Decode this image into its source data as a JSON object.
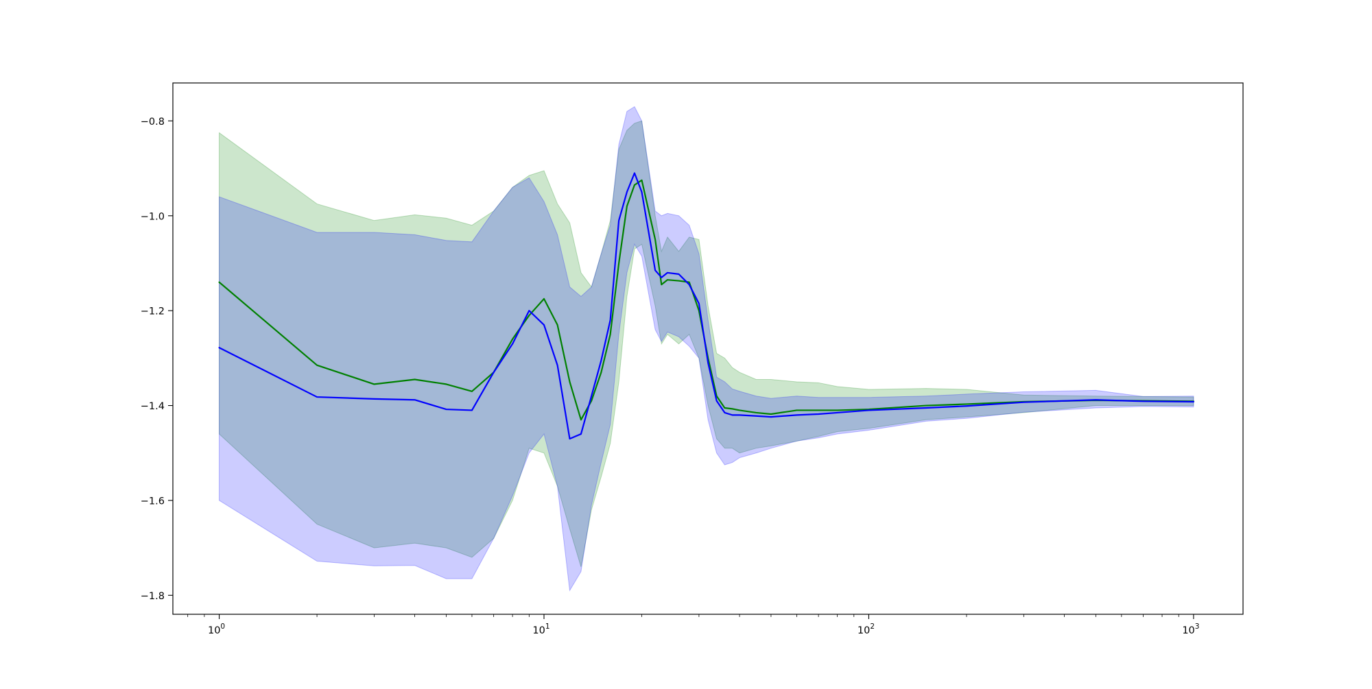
{
  "chart_data": {
    "type": "line",
    "title": "",
    "xlabel": "",
    "ylabel": "",
    "xscale": "log",
    "xlim": [
      0.72,
      1420
    ],
    "ylim": [
      -1.84,
      -0.72
    ],
    "grid": false,
    "x_major_ticks": [
      {
        "value": 1,
        "label_base": "10",
        "label_exp": "0"
      },
      {
        "value": 10,
        "label_base": "10",
        "label_exp": "1"
      },
      {
        "value": 100,
        "label_base": "10",
        "label_exp": "2"
      },
      {
        "value": 1000,
        "label_base": "10",
        "label_exp": "3"
      }
    ],
    "y_ticks": [
      {
        "value": -0.8,
        "label": "−0.8"
      },
      {
        "value": -1.0,
        "label": "−1.0"
      },
      {
        "value": -1.2,
        "label": "−1.2"
      },
      {
        "value": -1.4,
        "label": "−1.4"
      },
      {
        "value": -1.6,
        "label": "−1.6"
      },
      {
        "value": -1.8,
        "label": "−1.8"
      }
    ],
    "series": [
      {
        "color": "#008000",
        "band_color": "#008000",
        "band_opacity": 0.2,
        "x": [
          1,
          2,
          3,
          4,
          5,
          6,
          7,
          8,
          9,
          10,
          11,
          12,
          13,
          14,
          15,
          16,
          17,
          18,
          19,
          20,
          22,
          23,
          24,
          26,
          28,
          30,
          32,
          34,
          36,
          38,
          40,
          45,
          50,
          60,
          70,
          80,
          100,
          150,
          200,
          300,
          500,
          700,
          1000
        ],
        "mean": [
          -1.14,
          -1.315,
          -1.355,
          -1.345,
          -1.355,
          -1.37,
          -1.33,
          -1.26,
          -1.21,
          -1.175,
          -1.23,
          -1.35,
          -1.43,
          -1.39,
          -1.33,
          -1.25,
          -1.1,
          -0.98,
          -0.935,
          -0.925,
          -1.05,
          -1.145,
          -1.135,
          -1.137,
          -1.14,
          -1.2,
          -1.3,
          -1.38,
          -1.405,
          -1.407,
          -1.41,
          -1.415,
          -1.418,
          -1.41,
          -1.41,
          -1.41,
          -1.408,
          -1.4,
          -1.397,
          -1.392,
          -1.389,
          -1.39,
          -1.391
        ],
        "upper": [
          -0.825,
          -0.975,
          -1.01,
          -0.998,
          -1.005,
          -1.02,
          -0.99,
          -0.94,
          -0.915,
          -0.905,
          -0.975,
          -1.015,
          -1.12,
          -1.15,
          -1.08,
          -1.01,
          -0.86,
          -0.82,
          -0.805,
          -0.8,
          -1.0,
          -1.075,
          -1.045,
          -1.075,
          -1.045,
          -1.05,
          -1.19,
          -1.29,
          -1.3,
          -1.32,
          -1.33,
          -1.345,
          -1.345,
          -1.35,
          -1.352,
          -1.36,
          -1.366,
          -1.364,
          -1.366,
          -1.378,
          -1.38,
          -1.381,
          -1.382
        ],
        "lower": [
          -1.46,
          -1.65,
          -1.7,
          -1.69,
          -1.7,
          -1.72,
          -1.68,
          -1.6,
          -1.49,
          -1.5,
          -1.57,
          -1.66,
          -1.74,
          -1.62,
          -1.55,
          -1.48,
          -1.35,
          -1.17,
          -1.07,
          -1.06,
          -1.19,
          -1.27,
          -1.25,
          -1.27,
          -1.25,
          -1.3,
          -1.4,
          -1.47,
          -1.49,
          -1.49,
          -1.5,
          -1.49,
          -1.485,
          -1.475,
          -1.465,
          -1.455,
          -1.448,
          -1.43,
          -1.424,
          -1.415,
          -1.4,
          -1.4,
          -1.4
        ]
      },
      {
        "color": "#0000ff",
        "band_color": "#0000ff",
        "band_opacity": 0.2,
        "x": [
          1,
          2,
          3,
          4,
          5,
          6,
          7,
          8,
          9,
          10,
          11,
          12,
          13,
          14,
          15,
          16,
          17,
          18,
          19,
          20,
          22,
          23,
          24,
          26,
          28,
          30,
          32,
          34,
          36,
          38,
          40,
          45,
          50,
          60,
          70,
          80,
          100,
          150,
          200,
          300,
          500,
          700,
          1000
        ],
        "mean": [
          -1.278,
          -1.382,
          -1.386,
          -1.388,
          -1.408,
          -1.41,
          -1.33,
          -1.27,
          -1.2,
          -1.23,
          -1.315,
          -1.47,
          -1.46,
          -1.38,
          -1.305,
          -1.22,
          -1.01,
          -0.95,
          -0.91,
          -0.95,
          -1.115,
          -1.13,
          -1.12,
          -1.123,
          -1.145,
          -1.185,
          -1.31,
          -1.39,
          -1.415,
          -1.42,
          -1.42,
          -1.422,
          -1.424,
          -1.42,
          -1.418,
          -1.415,
          -1.41,
          -1.405,
          -1.401,
          -1.393,
          -1.388,
          -1.391,
          -1.392
        ],
        "upper": [
          -0.96,
          -1.035,
          -1.035,
          -1.04,
          -1.052,
          -1.055,
          -0.99,
          -0.94,
          -0.92,
          -0.97,
          -1.04,
          -1.15,
          -1.17,
          -1.15,
          -1.08,
          -1.02,
          -0.85,
          -0.78,
          -0.77,
          -0.8,
          -0.99,
          -1.0,
          -0.995,
          -1.0,
          -1.02,
          -1.08,
          -1.22,
          -1.34,
          -1.35,
          -1.365,
          -1.37,
          -1.38,
          -1.385,
          -1.38,
          -1.383,
          -1.383,
          -1.383,
          -1.38,
          -1.376,
          -1.371,
          -1.368,
          -1.381,
          -1.38
        ],
        "lower": [
          -1.6,
          -1.728,
          -1.738,
          -1.737,
          -1.765,
          -1.765,
          -1.68,
          -1.59,
          -1.5,
          -1.46,
          -1.57,
          -1.79,
          -1.75,
          -1.61,
          -1.52,
          -1.44,
          -1.25,
          -1.12,
          -1.06,
          -1.085,
          -1.24,
          -1.265,
          -1.245,
          -1.255,
          -1.275,
          -1.3,
          -1.43,
          -1.5,
          -1.525,
          -1.52,
          -1.51,
          -1.5,
          -1.49,
          -1.475,
          -1.468,
          -1.46,
          -1.452,
          -1.433,
          -1.427,
          -1.414,
          -1.405,
          -1.402,
          -1.403
        ]
      }
    ]
  }
}
